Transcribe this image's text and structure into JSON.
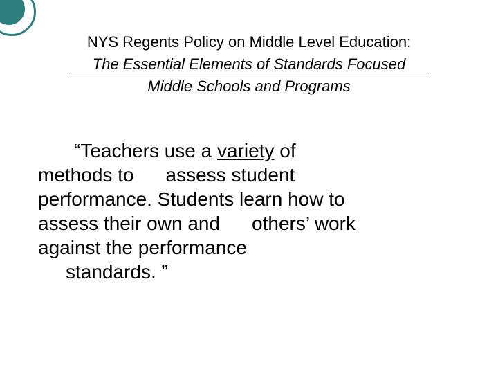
{
  "decoration": {
    "ring_color": "#2e7e7e",
    "disc_color": "#2e7e7e"
  },
  "title": {
    "line1": "NYS Regents Policy on Middle Level Education:",
    "line2": "The Essential Elements of Standards Focused",
    "line3": "Middle Schools and Programs"
  },
  "body": {
    "pre1": "“Teachers use a ",
    "underlined": "variety",
    "post1": " of",
    "line2a": "methods  to",
    "line2b": "assess student",
    "line3": "performance. Students  learn how to",
    "line4a": "assess their own and",
    "line4b": "others’ work",
    "line5": "against the performance",
    "line6": "standards. ”"
  }
}
